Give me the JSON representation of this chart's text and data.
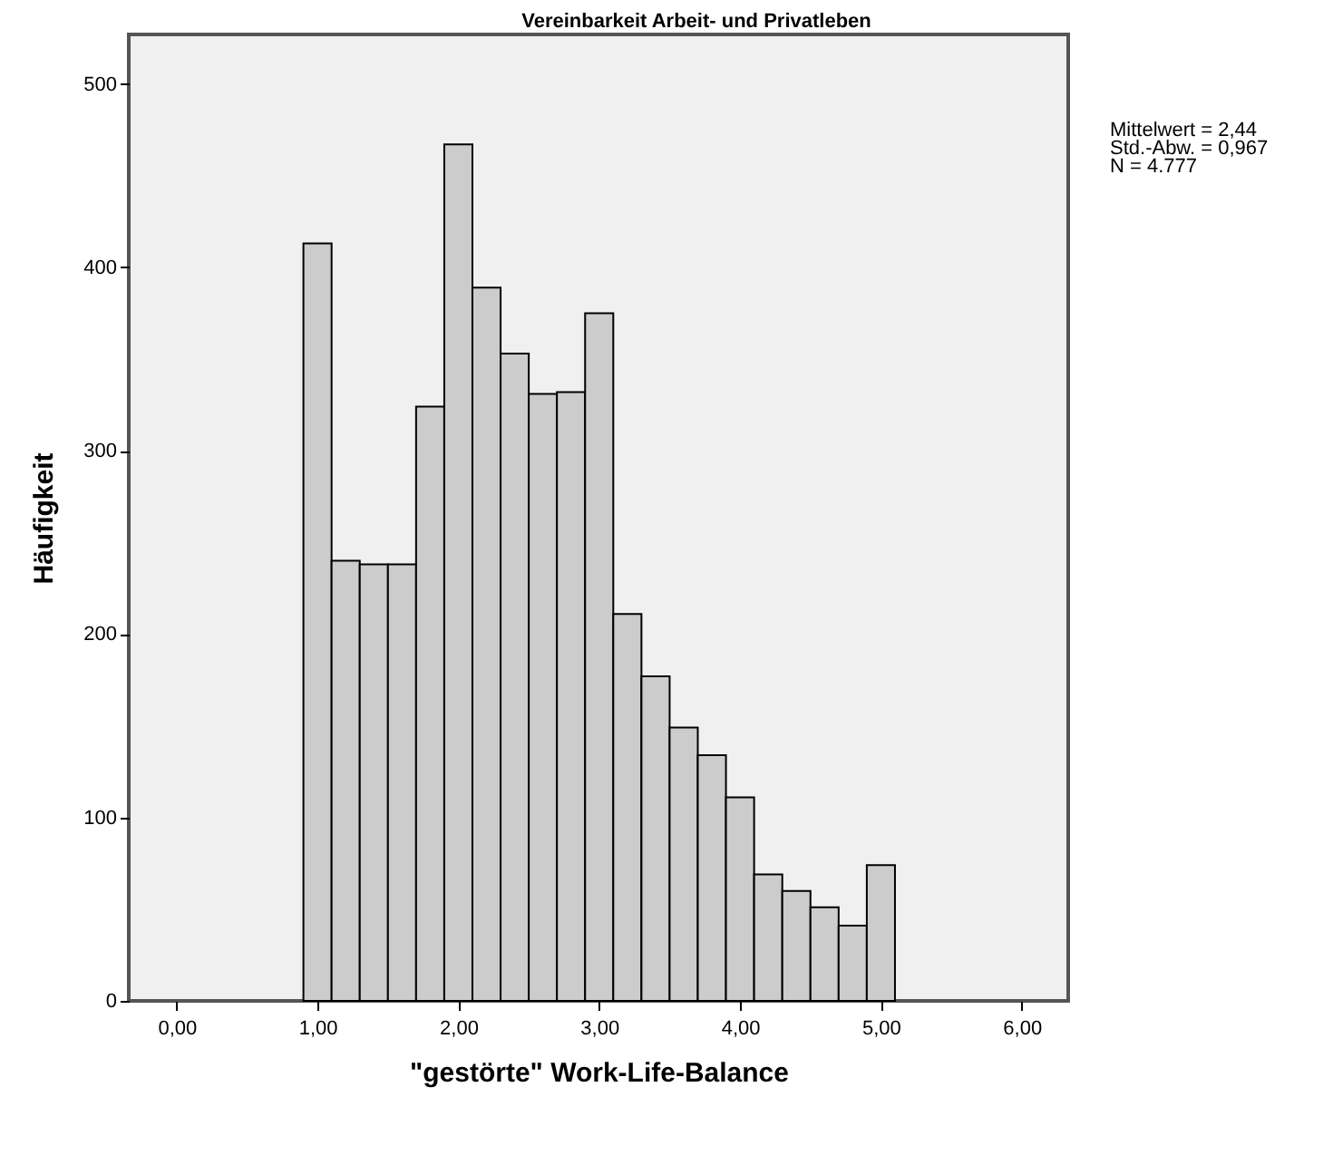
{
  "chart_data": {
    "type": "histogram",
    "title": "Vereinbarkeit Arbeit- und Privatleben",
    "xlabel": "\"gestörte\" Work-Life-Balance",
    "ylabel": "Häufigkeit",
    "bins": [
      0.9,
      1.1,
      1.3,
      1.5,
      1.7,
      1.9,
      2.1,
      2.3,
      2.5,
      2.7,
      2.9,
      3.1,
      3.3,
      3.5,
      3.7,
      3.9,
      4.1,
      4.3,
      4.5,
      4.7,
      4.9,
      5.1
    ],
    "values": [
      413,
      240,
      238,
      238,
      324,
      467,
      389,
      353,
      331,
      332,
      375,
      211,
      177,
      149,
      134,
      111,
      69,
      60,
      51,
      41,
      74
    ],
    "color": "#cccccc",
    "xlim": [
      -0.34,
      6.33
    ],
    "xticks": [
      {
        "value": 0,
        "label": "0,00"
      },
      {
        "value": 1,
        "label": "1,00"
      },
      {
        "value": 2,
        "label": "2,00"
      },
      {
        "value": 3,
        "label": "3,00"
      },
      {
        "value": 4,
        "label": "4,00"
      },
      {
        "value": 5,
        "label": "5,00"
      },
      {
        "value": 6,
        "label": "6,00"
      }
    ],
    "ylim": [
      0,
      527
    ],
    "yticks": [
      0,
      100,
      200,
      300,
      400,
      500
    ],
    "grid": false,
    "annotations": [
      "Mittelwert = 2,44",
      "Std.-Abw. = 0,967",
      "N = 4.777"
    ]
  }
}
